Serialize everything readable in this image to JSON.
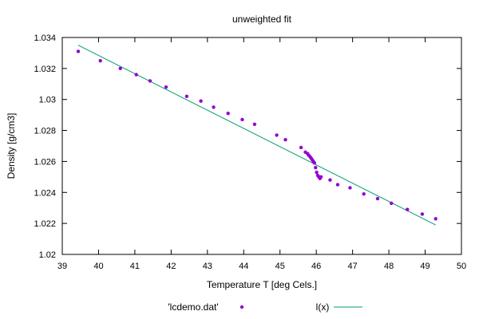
{
  "chart_data": {
    "type": "scatter",
    "title": "unweighted fit",
    "xlabel": "Temperature T  [deg Cels.]",
    "ylabel": "Density [g/cm3]",
    "xlim": [
      39,
      50
    ],
    "ylim": [
      1.02,
      1.034
    ],
    "xticks": [
      "39",
      "40",
      "41",
      "42",
      "43",
      "44",
      "45",
      "46",
      "47",
      "48",
      "49",
      "50"
    ],
    "yticks": [
      "1.02",
      "1.022",
      "1.024",
      "1.026",
      "1.028",
      "1.03",
      "1.032",
      "1.034"
    ],
    "legend_placement": "bottom",
    "series": [
      {
        "name": "'lcdemo.dat'",
        "type": "scatter",
        "color": "#9400d3",
        "x": [
          39.44,
          40.05,
          40.6,
          41.04,
          41.42,
          41.86,
          42.43,
          42.82,
          43.17,
          43.57,
          43.96,
          44.3,
          44.91,
          45.15,
          45.58,
          45.7,
          45.76,
          45.79,
          45.83,
          45.86,
          45.89,
          45.92,
          45.95,
          45.98,
          46.01,
          46.04,
          46.07,
          46.1,
          46.13,
          46.38,
          46.59,
          46.93,
          47.31,
          47.69,
          48.07,
          48.51,
          48.92,
          49.29
        ],
        "y": [
          1.0331,
          1.0325,
          1.032,
          1.0316,
          1.0312,
          1.0308,
          1.0302,
          1.0299,
          1.0295,
          1.0291,
          1.0287,
          1.0284,
          1.0277,
          1.0274,
          1.0269,
          1.0266,
          1.0265,
          1.0264,
          1.0263,
          1.0262,
          1.0261,
          1.026,
          1.0259,
          1.0256,
          1.0253,
          1.0251,
          1.025,
          1.0249,
          1.025,
          1.0248,
          1.0245,
          1.0243,
          1.0239,
          1.0236,
          1.0233,
          1.0229,
          1.0226,
          1.0223
        ]
      },
      {
        "name": "l(x)",
        "type": "line",
        "color": "#009e73",
        "x": [
          39.44,
          49.29
        ],
        "y": [
          1.0335,
          1.0219
        ]
      }
    ]
  }
}
